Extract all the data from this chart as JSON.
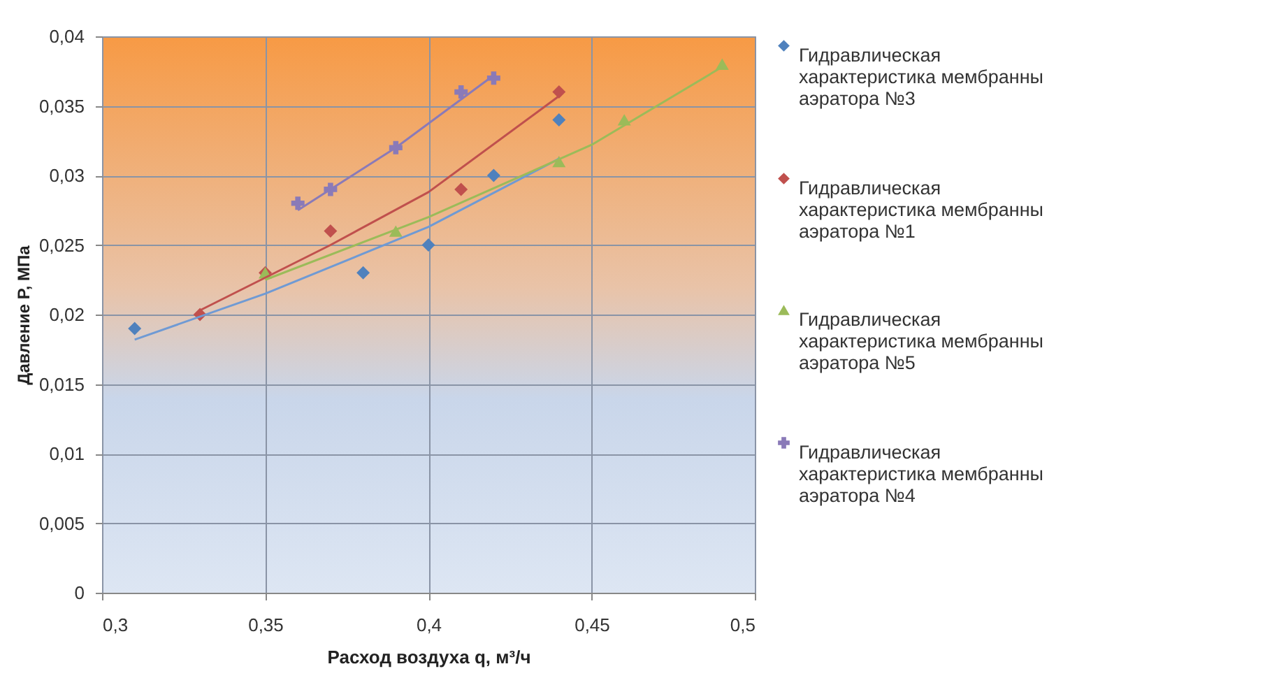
{
  "chart_data": {
    "type": "scatter",
    "xlabel": "Расход воздуха q, м³/ч",
    "ylabel": "Давление P, МПа",
    "xlim": [
      0.3,
      0.5
    ],
    "xticks": [
      {
        "value": 0.3,
        "label": "0,3"
      },
      {
        "value": 0.35,
        "label": "0,35"
      },
      {
        "value": 0.4,
        "label": "0,4"
      },
      {
        "value": 0.45,
        "label": "0,45"
      },
      {
        "value": 0.5,
        "label": "0,5"
      }
    ],
    "ylim": [
      0,
      0.04
    ],
    "yticks": [
      {
        "value": 0,
        "label": "0"
      },
      {
        "value": 0.005,
        "label": "0,005"
      },
      {
        "value": 0.01,
        "label": "0,01"
      },
      {
        "value": 0.015,
        "label": "0,015"
      },
      {
        "value": 0.02,
        "label": "0,02"
      },
      {
        "value": 0.025,
        "label": "0,025"
      },
      {
        "value": 0.03,
        "label": "0,03"
      },
      {
        "value": 0.035,
        "label": "0,035"
      },
      {
        "value": 0.04,
        "label": "0,04"
      }
    ],
    "grid": true,
    "legend": "right",
    "series": [
      {
        "name": "Гидравлическая характеристика мембранны аэратора №3",
        "color": "#4f81bd",
        "marker": "diamond",
        "x": [
          0.31,
          0.38,
          0.4,
          0.42,
          0.44
        ],
        "values": [
          0.019,
          0.023,
          0.025,
          0.03,
          0.034
        ]
      },
      {
        "name": "Гидравлическая характеристика мембранны аэратора №1",
        "color": "#c0504d",
        "marker": "diamond",
        "x": [
          0.33,
          0.35,
          0.37,
          0.41,
          0.44
        ],
        "values": [
          0.02,
          0.023,
          0.026,
          0.029,
          0.036
        ]
      },
      {
        "name": "Гидравлическая характеристика мембранны аэратора №5",
        "color": "#9bbb59",
        "marker": "triangle",
        "x": [
          0.35,
          0.39,
          0.44,
          0.46,
          0.49
        ],
        "values": [
          0.023,
          0.026,
          0.031,
          0.034,
          0.038
        ]
      },
      {
        "name": "Гидравлическая характеристика мембранны аэратора №4",
        "color": "#8a7ab8",
        "marker": "cross",
        "x": [
          0.36,
          0.37,
          0.39,
          0.41,
          0.42
        ],
        "values": [
          0.028,
          0.029,
          0.032,
          0.036,
          0.037
        ]
      },
      {
        "type": "line",
        "color": "#6f9ad4",
        "x": [
          0.31,
          0.35,
          0.4,
          0.44
        ],
        "values": [
          0.0182,
          0.0215,
          0.0263,
          0.0312
        ]
      },
      {
        "type": "line",
        "color": "#c0504d",
        "x": [
          0.33,
          0.37,
          0.4,
          0.44
        ],
        "values": [
          0.0203,
          0.025,
          0.0288,
          0.0357
        ]
      },
      {
        "type": "line",
        "color": "#9bbb59",
        "x": [
          0.35,
          0.4,
          0.45,
          0.49
        ],
        "values": [
          0.0225,
          0.027,
          0.0322,
          0.0378
        ]
      },
      {
        "type": "line",
        "color": "#8a7ab8",
        "x": [
          0.36,
          0.39,
          0.42
        ],
        "values": [
          0.0275,
          0.032,
          0.0372
        ]
      }
    ]
  }
}
